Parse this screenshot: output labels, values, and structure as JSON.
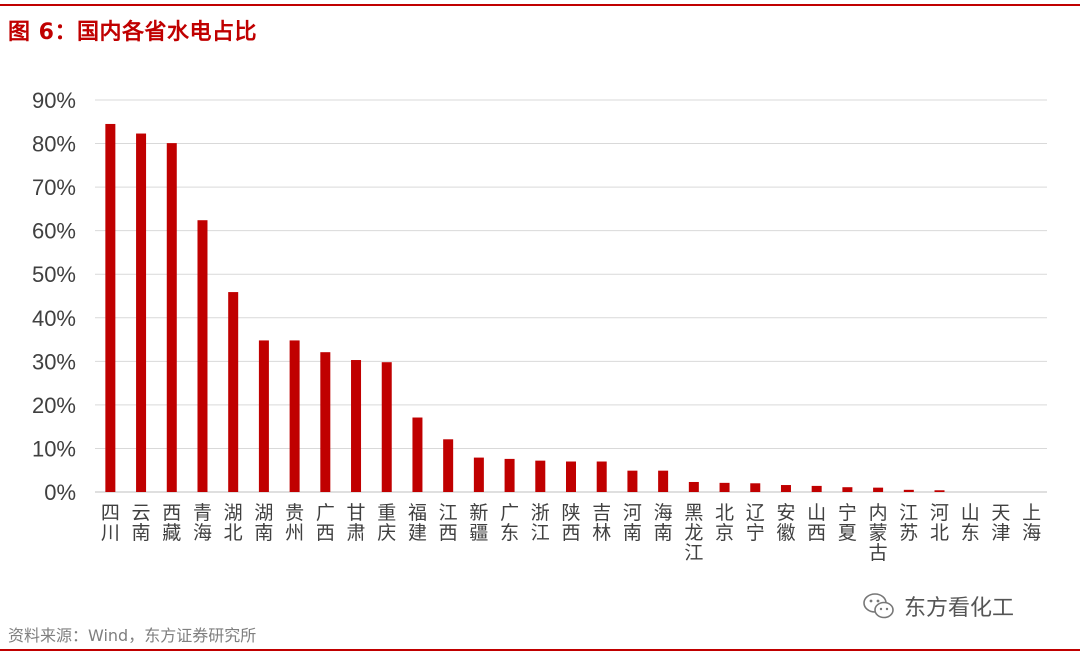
{
  "figure": {
    "title": "图 6：国内各省水电占比",
    "source": "资料来源：Wind，东方证券研究所",
    "watermark": "东方看化工"
  },
  "colors": {
    "bar": "#c00000",
    "grid": "#d9d9d9",
    "tick_text": "#404040",
    "accent": "#c00000"
  },
  "chart_data": {
    "type": "bar",
    "title": "",
    "xlabel": "",
    "ylabel": "",
    "ylim": [
      0,
      90
    ],
    "y_ticks": [
      "0%",
      "10%",
      "20%",
      "30%",
      "40%",
      "50%",
      "60%",
      "70%",
      "80%",
      "90%"
    ],
    "grid": true,
    "legend": "none",
    "categories": [
      "四川",
      "云南",
      "西藏",
      "青海",
      "湖北",
      "湖南",
      "贵州",
      "广西",
      "甘肃",
      "重庆",
      "福建",
      "江西",
      "新疆",
      "广东",
      "浙江",
      "陕西",
      "吉林",
      "河南",
      "海南",
      "黑龙江",
      "北京",
      "辽宁",
      "安徽",
      "山西",
      "宁夏",
      "内蒙古",
      "江苏",
      "河北",
      "山东",
      "天津",
      "上海"
    ],
    "values": [
      84.5,
      82.3,
      80.1,
      62.4,
      45.9,
      34.8,
      34.8,
      32.1,
      30.3,
      29.8,
      17.1,
      12.1,
      7.9,
      7.6,
      7.2,
      7.0,
      7.0,
      4.9,
      4.9,
      2.3,
      2.1,
      2.0,
      1.6,
      1.4,
      1.1,
      1.0,
      0.5,
      0.4,
      0.0,
      0.0,
      0.0
    ]
  }
}
